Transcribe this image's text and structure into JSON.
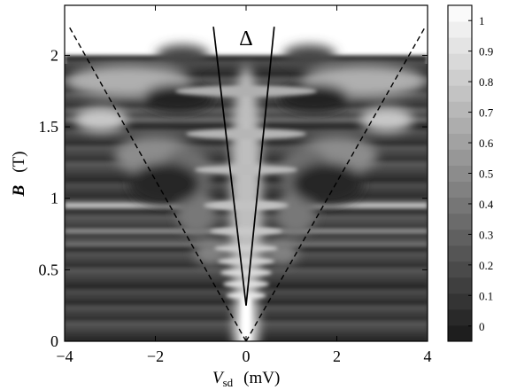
{
  "chart_data": {
    "type": "heatmap",
    "title": "",
    "xlabel": {
      "symbol": "V",
      "subscript": "sd",
      "unit": "(mV)"
    },
    "ylabel": {
      "symbol": "B",
      "unit": "(T)"
    },
    "xlim": [
      -4,
      4
    ],
    "ylim": [
      0,
      2.35
    ],
    "data_ymax": 2.0,
    "x_ticks": [
      -4,
      -2,
      0,
      2,
      4
    ],
    "x_tick_labels": [
      "−4",
      "−2",
      "0",
      "2",
      "4"
    ],
    "y_ticks": [
      0,
      0.5,
      1,
      1.5,
      2
    ],
    "y_tick_labels": [
      "0",
      "0.5",
      "1",
      "1.5",
      "2"
    ],
    "colorbar": {
      "range": [
        -0.05,
        1.05
      ],
      "ticks": [
        0,
        0.1,
        0.2,
        0.3,
        0.4,
        0.5,
        0.6,
        0.7,
        0.8,
        0.9,
        1
      ],
      "tick_labels": [
        "0",
        "0.1",
        "0.2",
        "0.3",
        "0.4",
        "0.5",
        "0.6",
        "0.7",
        "0.8",
        "0.9",
        "1"
      ],
      "colormap": "gray"
    },
    "annotations": [
      {
        "name": "delta-label",
        "text": "Δ",
        "x": 0,
        "y": 2.12
      }
    ],
    "lines": [
      {
        "name": "solid-line-left",
        "style": "solid",
        "points": [
          [
            0,
            0.25
          ],
          [
            -0.72,
            2.2
          ]
        ]
      },
      {
        "name": "solid-line-right",
        "style": "solid",
        "points": [
          [
            0,
            0.25
          ],
          [
            0.62,
            2.2
          ]
        ]
      },
      {
        "name": "dashed-line-left",
        "style": "dashed",
        "points": [
          [
            0,
            0
          ],
          [
            -3.9,
            2.2
          ]
        ]
      },
      {
        "name": "dashed-line-right",
        "style": "dashed",
        "points": [
          [
            0,
            0
          ],
          [
            3.95,
            2.2
          ]
        ]
      }
    ]
  }
}
